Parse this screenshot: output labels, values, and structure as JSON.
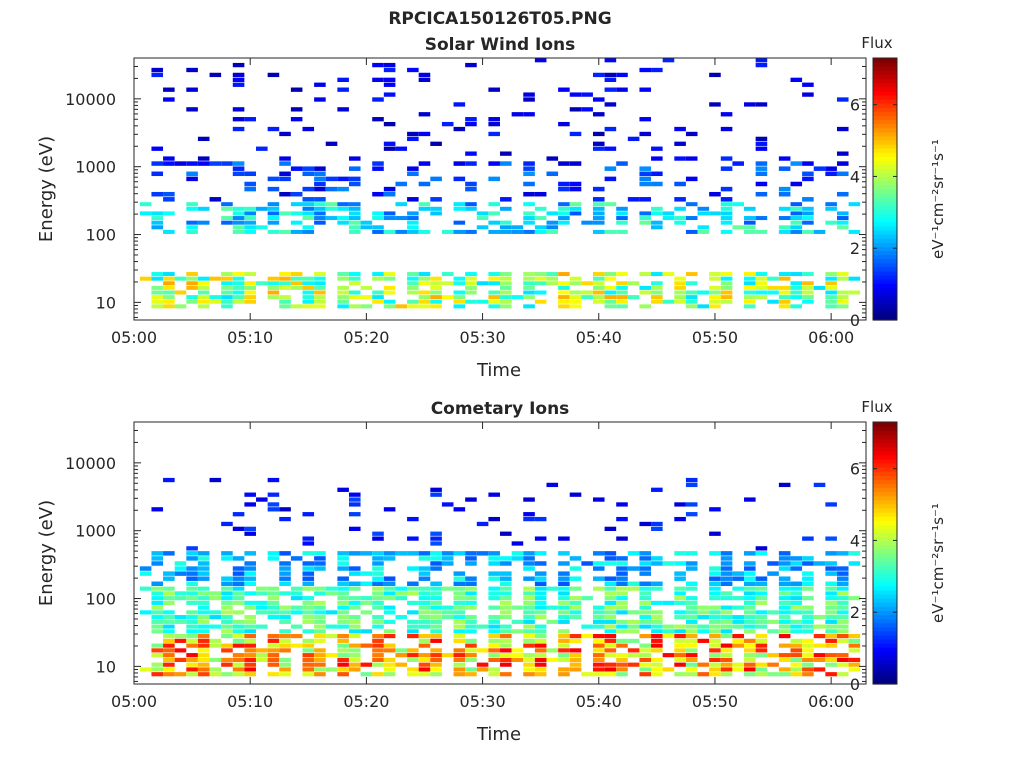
{
  "figure_title": "RPCICA150126T05.PNG",
  "colors": {
    "colormap": [
      "#00007f",
      "#0000ff",
      "#007fff",
      "#00ffff",
      "#7fff7f",
      "#ffff00",
      "#ff7f00",
      "#ff0000",
      "#7f0000"
    ],
    "axis": "#262626"
  },
  "chart_data": [
    {
      "type": "heatmap",
      "title": "Solar Wind Ions",
      "xlabel": "Time",
      "ylabel": "Energy (eV)",
      "y_scale": "log",
      "ylim": [
        5.5,
        40000
      ],
      "xlim": [
        "05:00",
        "06:03"
      ],
      "x_ticks": [
        "05:00",
        "05:10",
        "05:20",
        "05:30",
        "05:40",
        "05:50",
        "06:00"
      ],
      "y_ticks": [
        {
          "value": 10,
          "label": "10"
        },
        {
          "value": 100,
          "label": "100"
        },
        {
          "value": 1000,
          "label": "1000"
        },
        {
          "value": 10000,
          "label": "10000"
        }
      ],
      "colorbar": {
        "title": "Flux",
        "label": "eV⁻¹cm⁻²sr⁻¹s⁻¹",
        "range": [
          0,
          7.3
        ],
        "ticks": [
          "0",
          "2",
          "4",
          "6"
        ]
      },
      "pattern": {
        "time_bins_minutes": 62,
        "sweep_period_minutes": 3.2,
        "bands": [
          {
            "energy_range_eV": [
              8,
              28
            ],
            "flux_range": [
              2.5,
              5.2
            ],
            "fill": 0.85
          },
          {
            "energy_range_eV": [
              100,
              300
            ],
            "flux_range": [
              1.5,
              3.5
            ],
            "fill": 0.6
          },
          {
            "energy_range_eV": [
              300,
              1200
            ],
            "flux_range": [
              0.5,
              2.0
            ],
            "fill": 0.3
          },
          {
            "energy_range_eV": [
              1200,
              40000
            ],
            "flux_range": [
              0.3,
              1.2
            ],
            "fill": 0.12
          }
        ]
      }
    },
    {
      "type": "heatmap",
      "title": "Cometary Ions",
      "xlabel": "Time",
      "ylabel": "Energy (eV)",
      "y_scale": "log",
      "ylim": [
        5.5,
        40000
      ],
      "xlim": [
        "05:00",
        "06:03"
      ],
      "x_ticks": [
        "05:00",
        "05:10",
        "05:20",
        "05:30",
        "05:40",
        "05:50",
        "06:00"
      ],
      "y_ticks": [
        {
          "value": 10,
          "label": "10"
        },
        {
          "value": 100,
          "label": "100"
        },
        {
          "value": 1000,
          "label": "1000"
        },
        {
          "value": 10000,
          "label": "10000"
        }
      ],
      "colorbar": {
        "title": "Flux",
        "label": "eV⁻¹cm⁻²sr⁻¹s⁻¹",
        "range": [
          0,
          7.3
        ],
        "ticks": [
          "0",
          "2",
          "4",
          "6"
        ]
      },
      "pattern": {
        "time_bins_minutes": 62,
        "sweep_period_minutes": 3.2,
        "bands": [
          {
            "energy_range_eV": [
              7,
              30
            ],
            "flux_range": [
              3.5,
              6.5
            ],
            "fill": 0.9
          },
          {
            "energy_range_eV": [
              30,
              150
            ],
            "flux_range": [
              2.5,
              4.0
            ],
            "fill": 0.85
          },
          {
            "energy_range_eV": [
              150,
              500
            ],
            "flux_range": [
              1.5,
              3.0
            ],
            "fill": 0.7
          },
          {
            "energy_range_eV": [
              500,
              6000
            ],
            "flux_range": [
              0.5,
              1.5
            ],
            "fill": 0.1
          }
        ]
      }
    }
  ]
}
